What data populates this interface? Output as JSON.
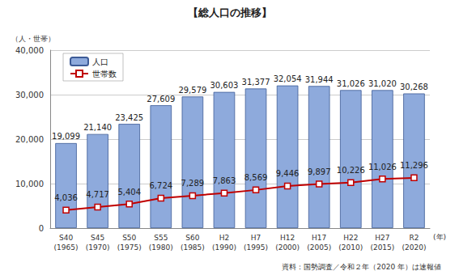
{
  "chart_data": {
    "type": "bar",
    "title": "【総人口の推移】",
    "ylabel": "（人・世帯）",
    "xlabel": "(年)",
    "annotations": [
      "資料：国勢調査／令和２年（2020 年）は速報値"
    ],
    "categories": [
      "S40\n(1965)",
      "S45\n(1970)",
      "S50\n(1975)",
      "S55\n(1980)",
      "S60\n(1985)",
      "H2\n(1990)",
      "H7\n(1995)",
      "H12\n(2000)",
      "H17\n(2005)",
      "H22\n(2010)",
      "H27\n(2015)",
      "R2\n(2020)"
    ],
    "series": [
      {
        "name": "人口",
        "type": "bar",
        "color": "#8eaadc",
        "values": [
          19099,
          21140,
          23425,
          27609,
          29579,
          30603,
          31377,
          32054,
          31944,
          31026,
          31020,
          30268
        ],
        "value_labels": [
          "19,099",
          "21,140",
          "23,425",
          "27,609",
          "29,579",
          "30,603",
          "31,377",
          "32,054",
          "31,944",
          "31,026",
          "31,020",
          "30,268"
        ]
      },
      {
        "name": "世帯数",
        "type": "line",
        "color": "#c00000",
        "marker": "square",
        "values": [
          4036,
          4717,
          5404,
          6724,
          7289,
          7863,
          8569,
          9446,
          9897,
          10226,
          11026,
          11296
        ],
        "value_labels": [
          "4,036",
          "4,717",
          "5,404",
          "6,724",
          "7,289",
          "7,863",
          "8,569",
          "9,446",
          "9,897",
          "10,226",
          "11,026",
          "11,296"
        ]
      }
    ],
    "ylim": [
      0,
      40000
    ],
    "yticks": [
      0,
      {
        "value": 10000,
        "label": "10,000"
      },
      {
        "value": 20000,
        "label": "20,000"
      },
      {
        "value": 30000,
        "label": "30,000"
      },
      {
        "value": 40000,
        "label": "40,000"
      }
    ],
    "grid": true,
    "legend": "top-left",
    "data_labels": true
  }
}
